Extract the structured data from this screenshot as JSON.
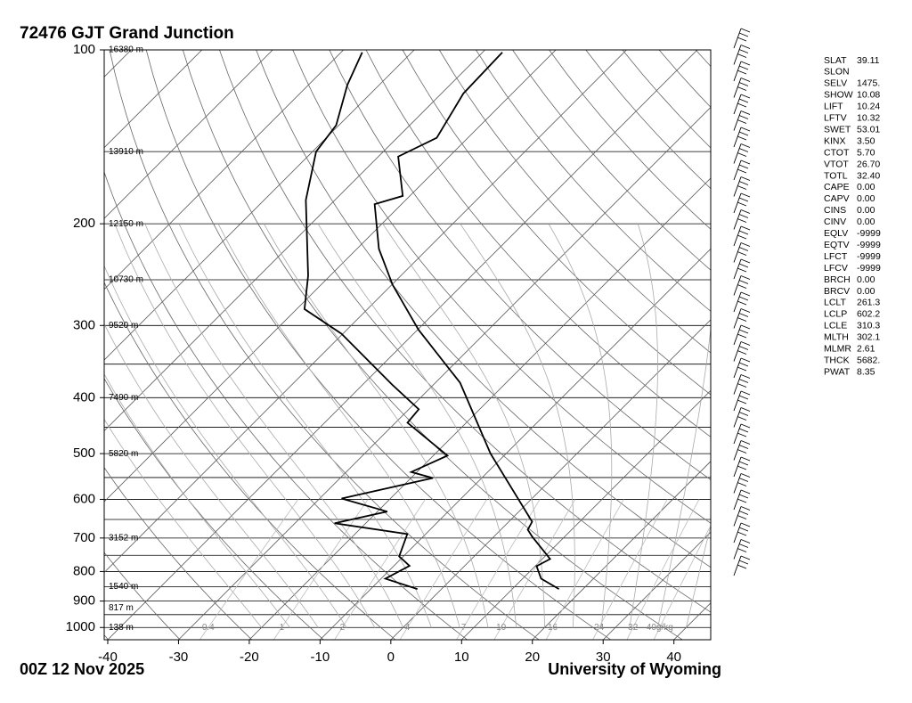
{
  "chart_data": {
    "type": "skewt",
    "title": "72476 GJT Grand Junction",
    "footer_left": "00Z 12 Nov 2025",
    "footer_right": "University of Wyoming",
    "xlim": [
      -40.5,
      45.2
    ],
    "xticks": [
      -40,
      -30,
      -20,
      -10,
      0,
      10,
      20,
      30,
      40
    ],
    "ylim": [
      1050,
      100
    ],
    "yticks": [
      100,
      200,
      300,
      400,
      500,
      600,
      700,
      800,
      900,
      1000
    ],
    "ylog": true,
    "series": [
      {
        "color": "#000000",
        "pressure": [
          858,
          823,
          783,
          761,
          696,
          677,
          656,
          500,
          377,
          305,
          255,
          221,
          185,
          179,
          153,
          142,
          119,
          101
        ],
        "values": [
          16.6,
          12.6,
          10.2,
          11.1,
          5.4,
          3.8,
          3.3,
          -12.2,
          -26.5,
          -39.9,
          -49.9,
          -56.9,
          -63.8,
          -61,
          -67.2,
          -64.4,
          -66.9,
          -67.2
        ]
      },
      {
        "color": "#000000",
        "pressure": [
          858,
          823,
          782,
          753,
          689,
          660,
          630,
          598,
          551,
          538,
          504,
          442,
          419,
          380,
          310,
          281,
          246,
          182,
          150,
          135,
          115,
          101
        ],
        "values": [
          -3.4,
          -9.4,
          -7.8,
          -10.6,
          -12.6,
          -24.4,
          -18.6,
          -26.9,
          -16.9,
          -20.8,
          -18.0,
          -28.3,
          -28.6,
          -35.8,
          -50.2,
          -58.9,
          -63.1,
          -74.1,
          -79.5,
          -80.4,
          -84.5,
          -87
        ]
      }
    ],
    "height_labels": {
      "pressure": [
        100,
        150,
        200,
        250,
        300,
        400,
        500,
        700,
        850,
        925,
        1000
      ],
      "labels": [
        "16380 m",
        "13910 m",
        "12150 m",
        "10730 m",
        "9520 m",
        "7490 m",
        "5820 m",
        "3152 m",
        "1540 m",
        "817 m",
        "138 m"
      ]
    },
    "mixing_ratio_labels": [
      0.4,
      1,
      2,
      4,
      7,
      10,
      16,
      24,
      32,
      {
        "value": 40,
        "label": "40g/kg"
      }
    ],
    "indices": [
      {
        "label": "SLAT",
        "value": "39.11"
      },
      {
        "label": "SLON"
      },
      {
        "label": "SELV",
        "value": "1475."
      },
      {
        "label": "SHOW",
        "value": "10.08"
      },
      {
        "label": "LIFT",
        "value": "10.24"
      },
      {
        "label": "LFTV",
        "value": "10.32"
      },
      {
        "label": "SWET",
        "value": "53.01"
      },
      {
        "label": "KINX",
        "value": "3.50"
      },
      {
        "label": "CTOT",
        "value": "5.70"
      },
      {
        "label": "VTOT",
        "value": "26.70"
      },
      {
        "label": "TOTL",
        "value": "32.40"
      },
      {
        "label": "CAPE",
        "value": "0.00"
      },
      {
        "label": "CAPV",
        "value": "0.00"
      },
      {
        "label": "CINS",
        "value": "0.00"
      },
      {
        "label": "CINV",
        "value": "0.00"
      },
      {
        "label": "EQLV",
        "value": "-9999"
      },
      {
        "label": "EQTV",
        "value": "-9999"
      },
      {
        "label": "LFCT",
        "value": "-9999"
      },
      {
        "label": "LFCV",
        "value": "-9999"
      },
      {
        "label": "BRCH",
        "value": "0.00"
      },
      {
        "label": "BRCV",
        "value": "0.00"
      },
      {
        "label": "LCLT",
        "value": "261.3"
      },
      {
        "label": "LCLP",
        "value": "602.2"
      },
      {
        "label": "LCLE",
        "value": "310.3"
      },
      {
        "label": "MLTH",
        "value": "302.1"
      },
      {
        "label": "MLMR",
        "value": "2.61"
      },
      {
        "label": "THCK",
        "value": "5682."
      },
      {
        "label": "PWAT",
        "value": "8.35"
      }
    ]
  }
}
